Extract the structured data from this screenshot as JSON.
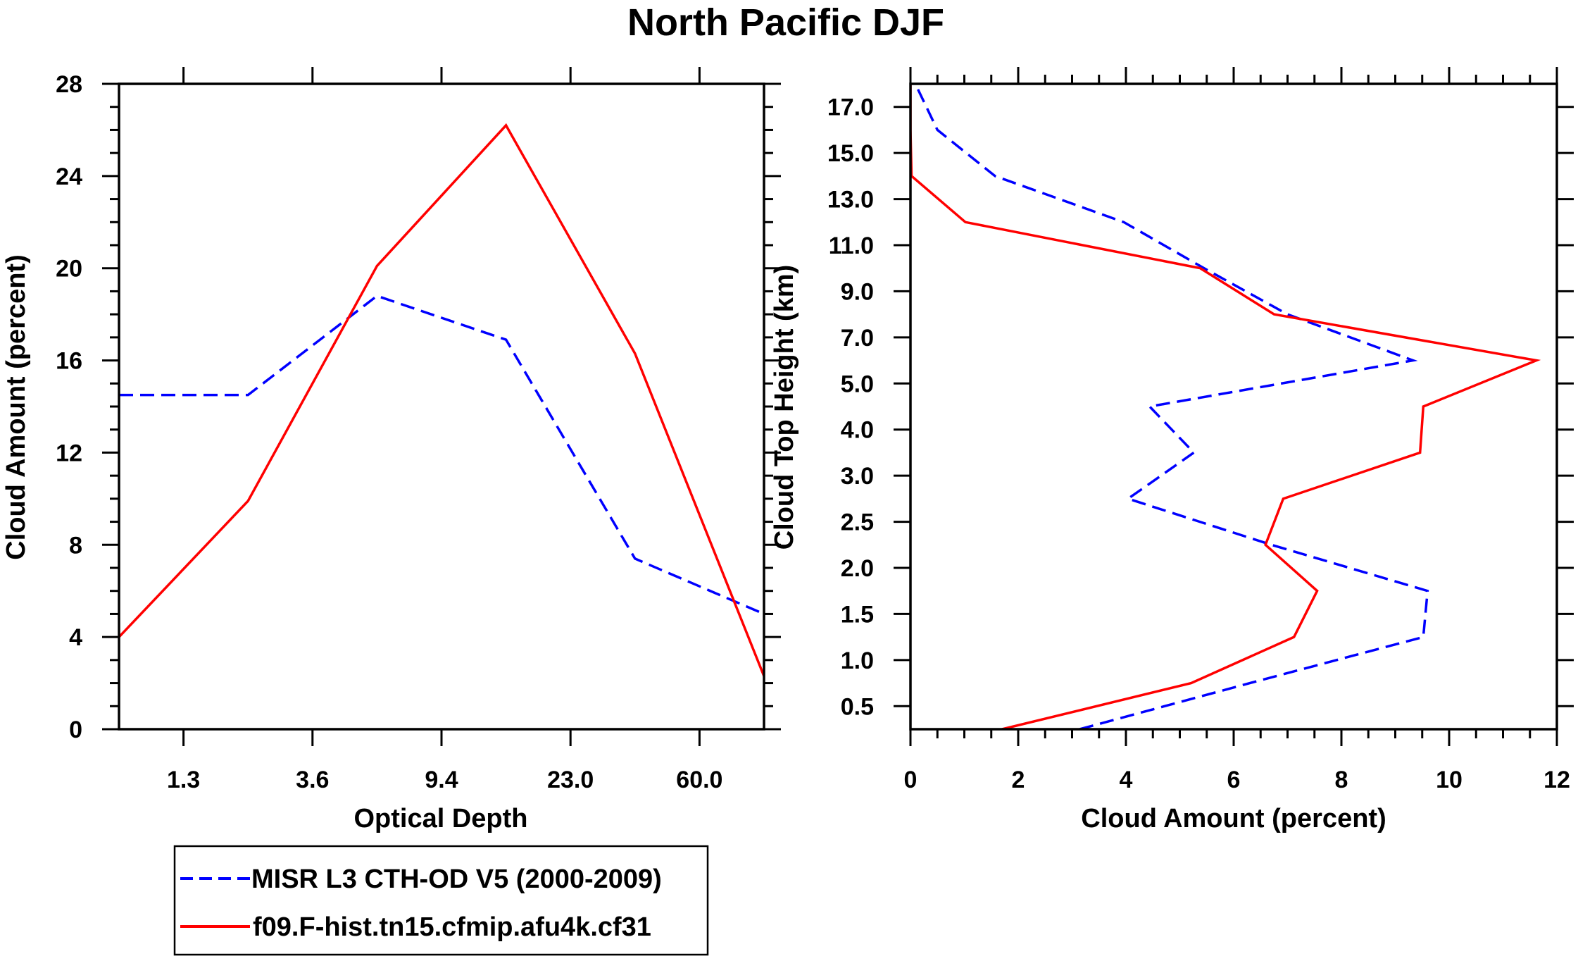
{
  "title": "North Pacific DJF",
  "colors": {
    "obs": "#0000ff",
    "model": "#ff0000",
    "axis": "#000000"
  },
  "chart_data": [
    {
      "type": "line",
      "title": "",
      "xlabel": "Optical Depth",
      "ylabel": "Cloud Amount (percent)",
      "x_bin_edges": [
        0,
        1,
        2,
        3,
        4,
        5
      ],
      "xtick_labels": [
        "1.3",
        "3.6",
        "9.4",
        "23.0",
        "60.0"
      ],
      "ylim": [
        0,
        28
      ],
      "yticks": [
        "0",
        "4",
        "8",
        "12",
        "16",
        "20",
        "24",
        "28"
      ],
      "series": [
        {
          "name": "MISR L3 CTH-OD V5 (2000-2009)",
          "style": "dashed",
          "color": "#0000ff",
          "values": [
            14.5,
            14.5,
            18.8,
            16.9,
            7.4,
            5.0
          ]
        },
        {
          "name": "f09.F-hist.tn15.cfmip.afu4k.cf31",
          "style": "solid",
          "color": "#ff0000",
          "values": [
            4.0,
            9.9,
            20.1,
            26.2,
            16.3,
            2.3
          ]
        }
      ]
    },
    {
      "type": "line",
      "title": "",
      "xlabel": "Cloud Amount (percent)",
      "ylabel": "Cloud Top Height (km)",
      "xlim": [
        0,
        12
      ],
      "xticks": [
        "0",
        "2",
        "4",
        "6",
        "8",
        "10",
        "12"
      ],
      "ytick_labels": [
        "0.5",
        "1.0",
        "1.5",
        "2.0",
        "2.5",
        "3.0",
        "4.0",
        "5.0",
        "7.0",
        "9.0",
        "11.0",
        "13.0",
        "15.0",
        "17.0"
      ],
      "y_level_count": 15,
      "series": [
        {
          "name": "MISR L3 CTH-OD V5 (2000-2009)",
          "style": "dashed",
          "color": "#0000ff",
          "values": [
            3.14,
            6.3,
            9.52,
            9.6,
            6.7,
            4.04,
            5.26,
            4.44,
            9.33,
            7.0,
            5.45,
            3.96,
            1.57,
            0.5,
            0.09
          ]
        },
        {
          "name": "f09.F-hist.tn15.cfmip.afu4k.cf31",
          "style": "solid",
          "color": "#ff0000",
          "values": [
            1.7,
            5.21,
            7.12,
            7.55,
            6.59,
            6.92,
            9.46,
            9.52,
            11.62,
            6.75,
            5.38,
            1.02,
            0.02,
            0.0,
            0.0
          ]
        }
      ]
    }
  ],
  "legend": {
    "placement": "bottom-left",
    "items": [
      {
        "label": "MISR L3 CTH-OD V5 (2000-2009)",
        "style": "dashed",
        "color": "#0000ff"
      },
      {
        "label": "f09.F-hist.tn15.cfmip.afu4k.cf31",
        "style": "solid",
        "color": "#ff0000"
      }
    ]
  }
}
